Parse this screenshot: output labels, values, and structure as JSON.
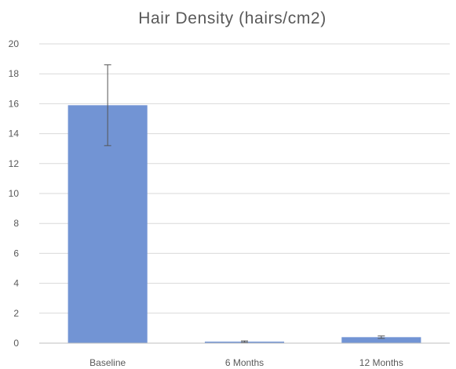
{
  "chart_data": {
    "type": "bar",
    "title": "Hair Density (hairs/cm2)",
    "xlabel": "",
    "ylabel": "",
    "categories": [
      "Baseline",
      "6 Months",
      "12 Months"
    ],
    "values": [
      15.9,
      0.1,
      0.4
    ],
    "error": [
      2.7,
      0.05,
      0.08
    ],
    "ylim": [
      0,
      20
    ],
    "yticks": [
      "0",
      "2",
      "4",
      "6",
      "8",
      "10",
      "12",
      "14",
      "16",
      "18",
      "20"
    ],
    "grid": true,
    "legend": "none",
    "bar_color": "#7294d4"
  }
}
